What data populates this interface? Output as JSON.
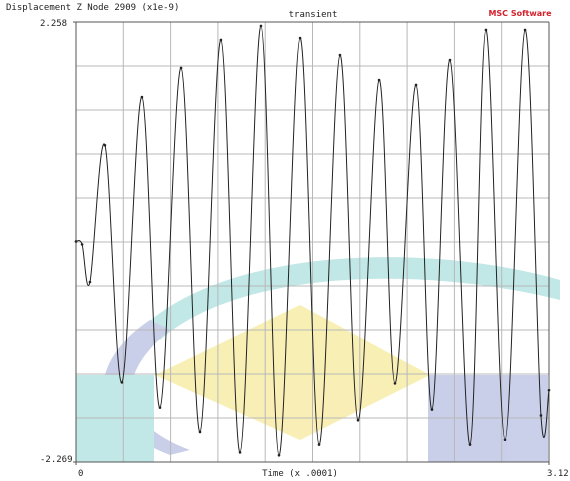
{
  "chart_data": {
    "type": "line",
    "title": "transient",
    "ylabel": "Displacement Z Node 2909 (x1e-9)",
    "xlabel": "Time (x .0001)",
    "logo": "MSC Software",
    "xlim": [
      0,
      3.12
    ],
    "ylim": [
      -2.269,
      2.258
    ],
    "xticks": [
      0,
      3.12
    ],
    "yticks": [
      -2.269,
      2.258
    ],
    "grid": true,
    "x": [
      0,
      0.04,
      0.092,
      0.191,
      0.303,
      0.435,
      0.554,
      0.693,
      0.818,
      0.956,
      1.082,
      1.22,
      1.339,
      1.478,
      1.603,
      1.741,
      1.86,
      1.999,
      2.104,
      2.243,
      2.348,
      2.467,
      2.599,
      2.704,
      2.83,
      2.962,
      3.067,
      3.12
    ],
    "series": [
      {
        "color": "#222222",
        "values": [
          0.0,
          -0.03,
          -0.417,
          0.99,
          -1.45,
          1.486,
          -1.71,
          1.785,
          -1.96,
          2.073,
          -2.17,
          2.217,
          -2.2,
          2.093,
          -2.09,
          1.918,
          -1.84,
          1.661,
          -1.46,
          1.61,
          -1.73,
          1.867,
          -2.09,
          2.176,
          -2.04,
          2.176,
          -1.79,
          -1.53
        ]
      }
    ]
  }
}
